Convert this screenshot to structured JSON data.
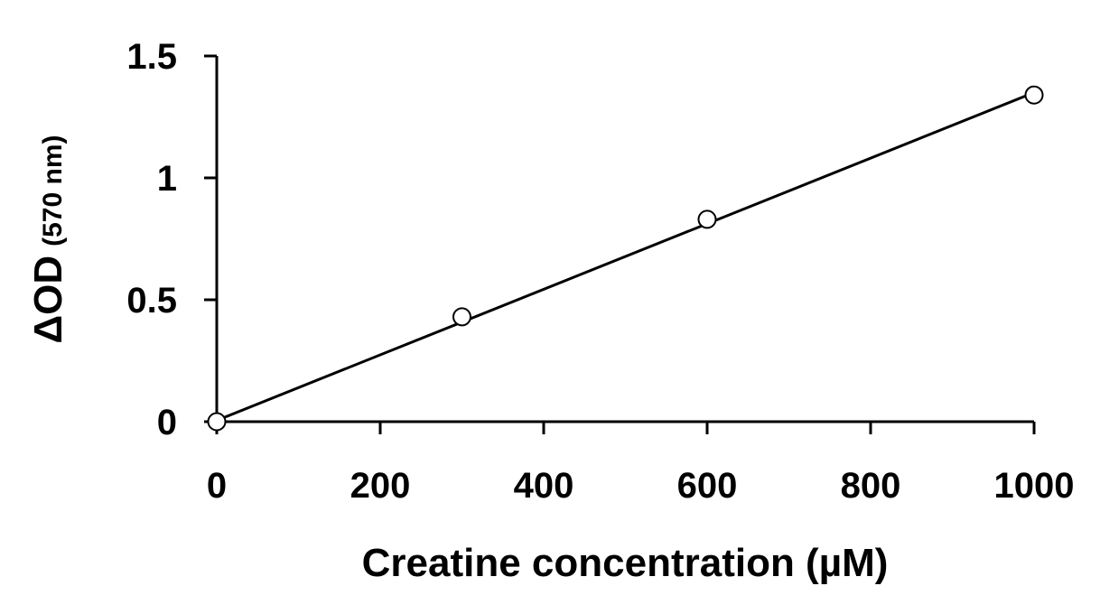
{
  "chart_data": {
    "type": "scatter",
    "title": "",
    "xlabel": "Creatine concentration (µM)",
    "ylabel_main": "ΔOD",
    "ylabel_unit": "(570 nm)",
    "xlim": [
      0,
      1000
    ],
    "ylim": [
      0,
      1.5
    ],
    "x_ticks": [
      0,
      200,
      400,
      600,
      800,
      1000
    ],
    "x_tick_labels": [
      "0",
      "200",
      "400",
      "600",
      "800",
      "1000"
    ],
    "y_ticks": [
      0,
      0.5,
      1,
      1.5
    ],
    "y_tick_labels": [
      "0",
      "0.5",
      "1",
      "1.5"
    ],
    "grid": false,
    "series": [
      {
        "x": [
          0,
          300,
          600,
          1000
        ],
        "y": [
          0,
          0.43,
          0.83,
          1.34
        ],
        "marker": "open-circle",
        "color": "#000000"
      }
    ],
    "trendline": {
      "type": "linear",
      "x": [
        0,
        1000
      ],
      "y": [
        0.005,
        1.35
      ],
      "color": "#000000"
    }
  }
}
